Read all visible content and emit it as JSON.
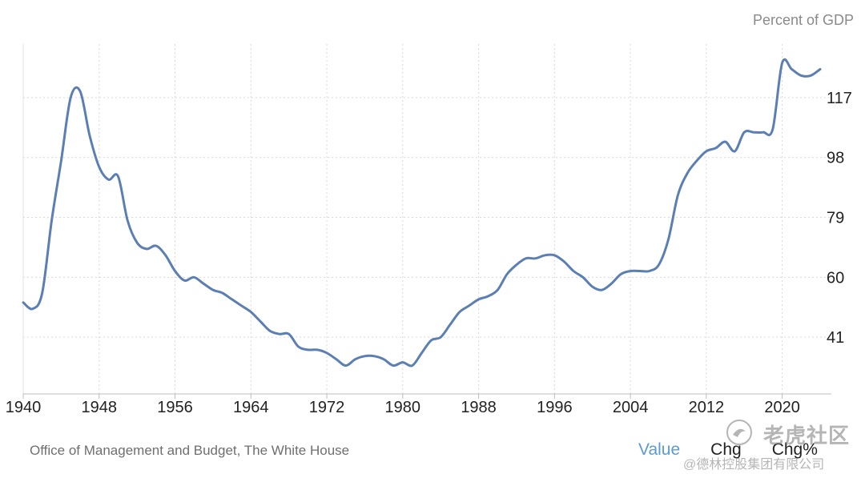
{
  "chart_data": {
    "type": "line",
    "unit_label": "Percent of GDP",
    "source": "Office of Management and Budget, The White House",
    "x_ticks": [
      "1940",
      "1948",
      "1956",
      "1964",
      "1972",
      "1980",
      "1988",
      "1996",
      "2004",
      "2012",
      "2020"
    ],
    "y_ticks": [
      41,
      60,
      79,
      98,
      117
    ],
    "xlim": [
      1940,
      2024
    ],
    "ylim": [
      23,
      134
    ],
    "grid": true,
    "series_color": "#5b7fb4",
    "series": [
      {
        "x": [
          1940,
          1941,
          1942,
          1943,
          1944,
          1945,
          1946,
          1947,
          1948,
          1949,
          1950,
          1951,
          1952,
          1953,
          1954,
          1955,
          1956,
          1957,
          1958,
          1959,
          1960,
          1961,
          1962,
          1963,
          1964,
          1965,
          1966,
          1967,
          1968,
          1969,
          1970,
          1971,
          1972,
          1973,
          1974,
          1975,
          1976,
          1977,
          1978,
          1979,
          1980,
          1981,
          1982,
          1983,
          1984,
          1985,
          1986,
          1987,
          1988,
          1989,
          1990,
          1991,
          1992,
          1993,
          1994,
          1995,
          1996,
          1997,
          1998,
          1999,
          2000,
          2001,
          2002,
          2003,
          2004,
          2005,
          2006,
          2007,
          2008,
          2009,
          2010,
          2011,
          2012,
          2013,
          2014,
          2015,
          2016,
          2017,
          2018,
          2019,
          2020,
          2021,
          2022,
          2023,
          2024
        ],
        "values": [
          52,
          50,
          55,
          78,
          97,
          117,
          119,
          105,
          95,
          91,
          92,
          78,
          71,
          69,
          70,
          67,
          62,
          59,
          60,
          58,
          56,
          55,
          53,
          51,
          49,
          46,
          43,
          42,
          42,
          38,
          37,
          37,
          36,
          34,
          32,
          34,
          35,
          35,
          34,
          32,
          33,
          32,
          36,
          40,
          41,
          45,
          49,
          51,
          53,
          54,
          56,
          61,
          64,
          66,
          66,
          67,
          67,
          65,
          62,
          60,
          57,
          56,
          58,
          61,
          62,
          62,
          62,
          64,
          72,
          86,
          93,
          97,
          100,
          101,
          103,
          100,
          106,
          106,
          106,
          107,
          128,
          126,
          124,
          124,
          126
        ]
      }
    ]
  },
  "toggles": {
    "value": "Value",
    "chg": "Chg",
    "chg_pct": "Chg%"
  },
  "watermark": {
    "title": "老虎社区",
    "subtitle": "@德林控股集团有限公司"
  }
}
